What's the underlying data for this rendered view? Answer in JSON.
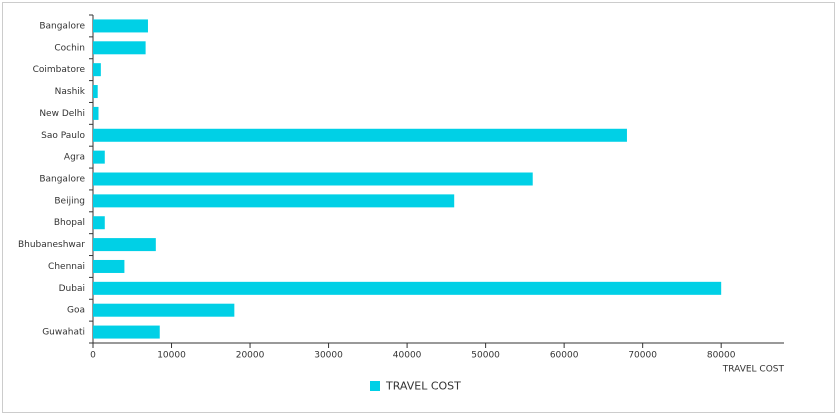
{
  "chart_data": {
    "type": "hbar",
    "categories": [
      "Bangalore",
      "Cochin",
      "Coimbatore",
      "Nashik",
      "New Delhi",
      "Sao Paulo",
      "Agra",
      "Bangalore",
      "Beijing",
      "Bhopal",
      "Bhubaneshwar",
      "Chennai",
      "Dubai",
      "Goa",
      "Guwahati"
    ],
    "series": [
      {
        "name": "TRAVEL COST",
        "color": "#00d0e6",
        "values": [
          7000,
          6700,
          1000,
          600,
          700,
          68000,
          1500,
          56000,
          46000,
          1500,
          8000,
          4000,
          80000,
          18000,
          8500
        ]
      }
    ],
    "x_label": "TRAVEL COST",
    "xlim": [
      0,
      88000
    ],
    "xticks": [
      0,
      10000,
      20000,
      30000,
      40000,
      50000,
      60000,
      70000,
      80000
    ]
  }
}
